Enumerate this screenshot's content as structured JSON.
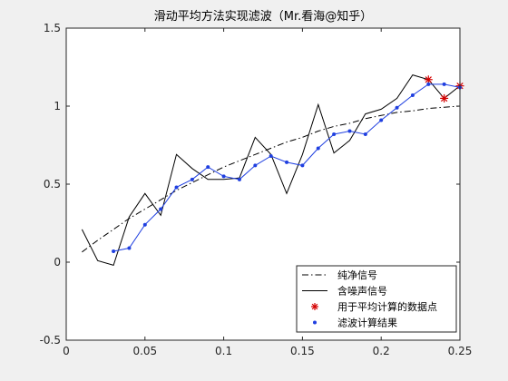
{
  "chart_data": {
    "type": "line",
    "title": "滑动平均方法实现滤波（Mr.看海@知乎）",
    "xlabel": "",
    "ylabel": "",
    "xlim": [
      0,
      0.25
    ],
    "ylim": [
      -0.5,
      1.5
    ],
    "xticks": [
      0,
      0.05,
      0.1,
      0.15,
      0.2,
      0.25
    ],
    "xtick_labels": [
      "0",
      "0.05",
      "0.1",
      "0.15",
      "0.2",
      "0.25"
    ],
    "yticks": [
      -0.5,
      0,
      0.5,
      1,
      1.5
    ],
    "ytick_labels": [
      "-0.5",
      "0",
      "0.5",
      "1",
      "1.5"
    ],
    "grid": false,
    "legend_position": "bottom-right",
    "series": [
      {
        "name": "纯净信号",
        "style": "dash-dot",
        "color": "#000000",
        "x": [
          0.01,
          0.02,
          0.03,
          0.04,
          0.05,
          0.06,
          0.07,
          0.08,
          0.09,
          0.1,
          0.11,
          0.12,
          0.13,
          0.14,
          0.15,
          0.16,
          0.17,
          0.18,
          0.19,
          0.2,
          0.21,
          0.22,
          0.23,
          0.24,
          0.25
        ],
        "y": [
          0.065,
          0.14,
          0.21,
          0.28,
          0.34,
          0.4,
          0.46,
          0.51,
          0.56,
          0.61,
          0.65,
          0.69,
          0.73,
          0.77,
          0.8,
          0.84,
          0.87,
          0.89,
          0.92,
          0.94,
          0.96,
          0.97,
          0.985,
          0.993,
          1.0
        ]
      },
      {
        "name": "含噪声信号",
        "style": "solid",
        "color": "#000000",
        "x": [
          0.01,
          0.02,
          0.03,
          0.04,
          0.05,
          0.06,
          0.07,
          0.08,
          0.09,
          0.1,
          0.11,
          0.12,
          0.13,
          0.14,
          0.15,
          0.16,
          0.17,
          0.18,
          0.19,
          0.2,
          0.21,
          0.22,
          0.23,
          0.24,
          0.25
        ],
        "y": [
          0.21,
          0.01,
          -0.02,
          0.29,
          0.44,
          0.3,
          0.69,
          0.6,
          0.53,
          0.53,
          0.54,
          0.8,
          0.69,
          0.44,
          0.69,
          1.01,
          0.7,
          0.78,
          0.95,
          0.98,
          1.05,
          1.2,
          1.17,
          1.05,
          1.13
        ]
      },
      {
        "name": "用于平均计算的数据点",
        "style": "marker-star",
        "color": "#d40000",
        "x": [
          0.23,
          0.24,
          0.25
        ],
        "y": [
          1.17,
          1.05,
          1.13
        ]
      },
      {
        "name": "滤波计算结果",
        "style": "line-with-dots",
        "color": "#1f3fe0",
        "x": [
          0.03,
          0.04,
          0.05,
          0.06,
          0.07,
          0.08,
          0.09,
          0.1,
          0.11,
          0.12,
          0.13,
          0.14,
          0.15,
          0.16,
          0.17,
          0.18,
          0.19,
          0.2,
          0.21,
          0.22,
          0.23,
          0.24,
          0.25
        ],
        "y": [
          0.07,
          0.09,
          0.24,
          0.34,
          0.48,
          0.53,
          0.61,
          0.55,
          0.53,
          0.62,
          0.68,
          0.64,
          0.62,
          0.73,
          0.82,
          0.84,
          0.82,
          0.91,
          0.99,
          1.07,
          1.14,
          1.14,
          1.12
        ]
      }
    ]
  }
}
